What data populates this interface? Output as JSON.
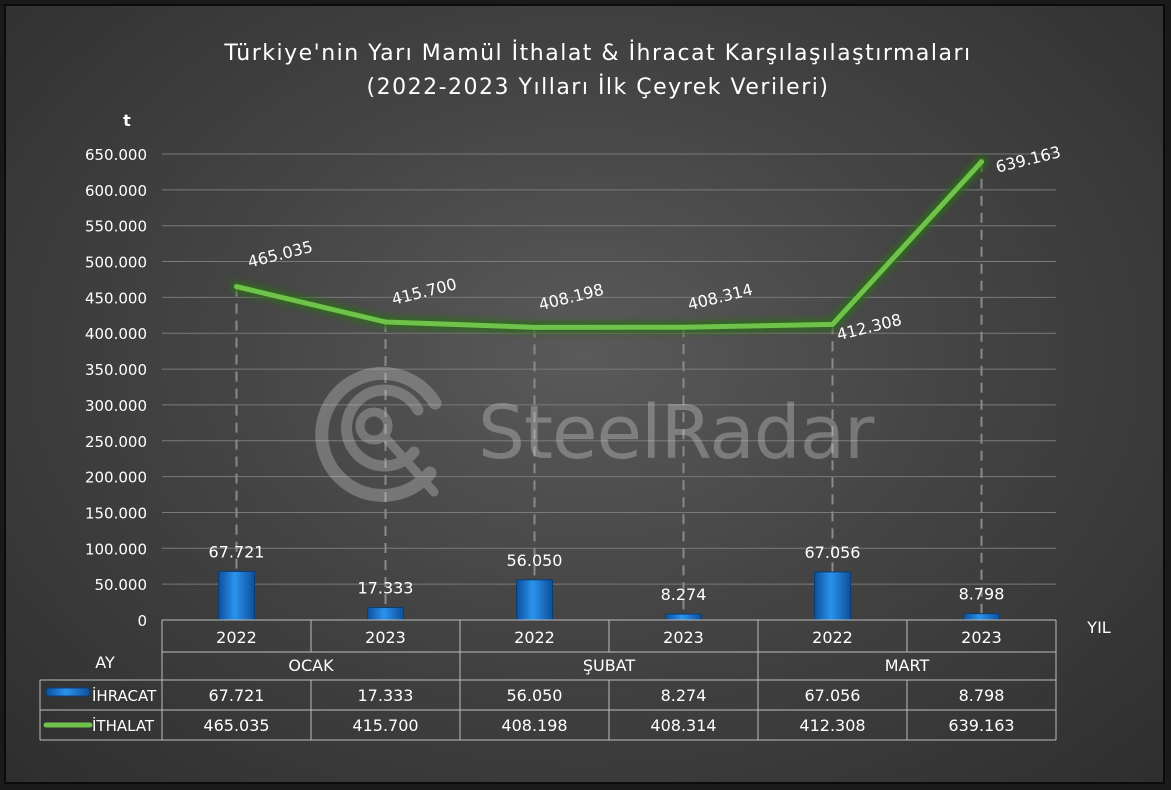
{
  "chart_data": {
    "type": "bar+line",
    "title_line1": "Türkiye'nin Yarı Mamül İthalat & İhracat Karşılaşılaştırmaları",
    "title_line2": "(2022-2023 Yılları İlk Çeyrek Verileri)",
    "ylabel": "t",
    "xlabel": "YIL",
    "group_label": "AY",
    "ylim": [
      0,
      650000
    ],
    "yticks": [
      0,
      50000,
      100000,
      150000,
      200000,
      250000,
      300000,
      350000,
      400000,
      450000,
      500000,
      550000,
      600000,
      650000
    ],
    "ytick_labels": [
      "0",
      "50.000",
      "100.000",
      "150.000",
      "200.000",
      "250.000",
      "300.000",
      "350.000",
      "400.000",
      "450.000",
      "500.000",
      "550.000",
      "600.000",
      "650.000"
    ],
    "categories": [
      "2022",
      "2023",
      "2022",
      "2023",
      "2022",
      "2023"
    ],
    "groups": [
      "OCAK",
      "ŞUBAT",
      "MART"
    ],
    "series": [
      {
        "name": "İHRACAT",
        "kind": "bar",
        "color": "#1f7fd8",
        "values": [
          67721,
          17333,
          56050,
          8274,
          67056,
          8798
        ],
        "labels": [
          "67.721",
          "17.333",
          "56.050",
          "8.274",
          "67.056",
          "8.798"
        ]
      },
      {
        "name": "İTHALAT",
        "kind": "line",
        "color": "#6fc24a",
        "values": [
          465035,
          415700,
          408198,
          408314,
          412308,
          639163
        ],
        "labels": [
          "465.035",
          "415.700",
          "408.198",
          "408.314",
          "412.308",
          "639.163"
        ]
      }
    ],
    "grid": true,
    "legend": "data-table"
  },
  "watermark": "SteelRadar"
}
